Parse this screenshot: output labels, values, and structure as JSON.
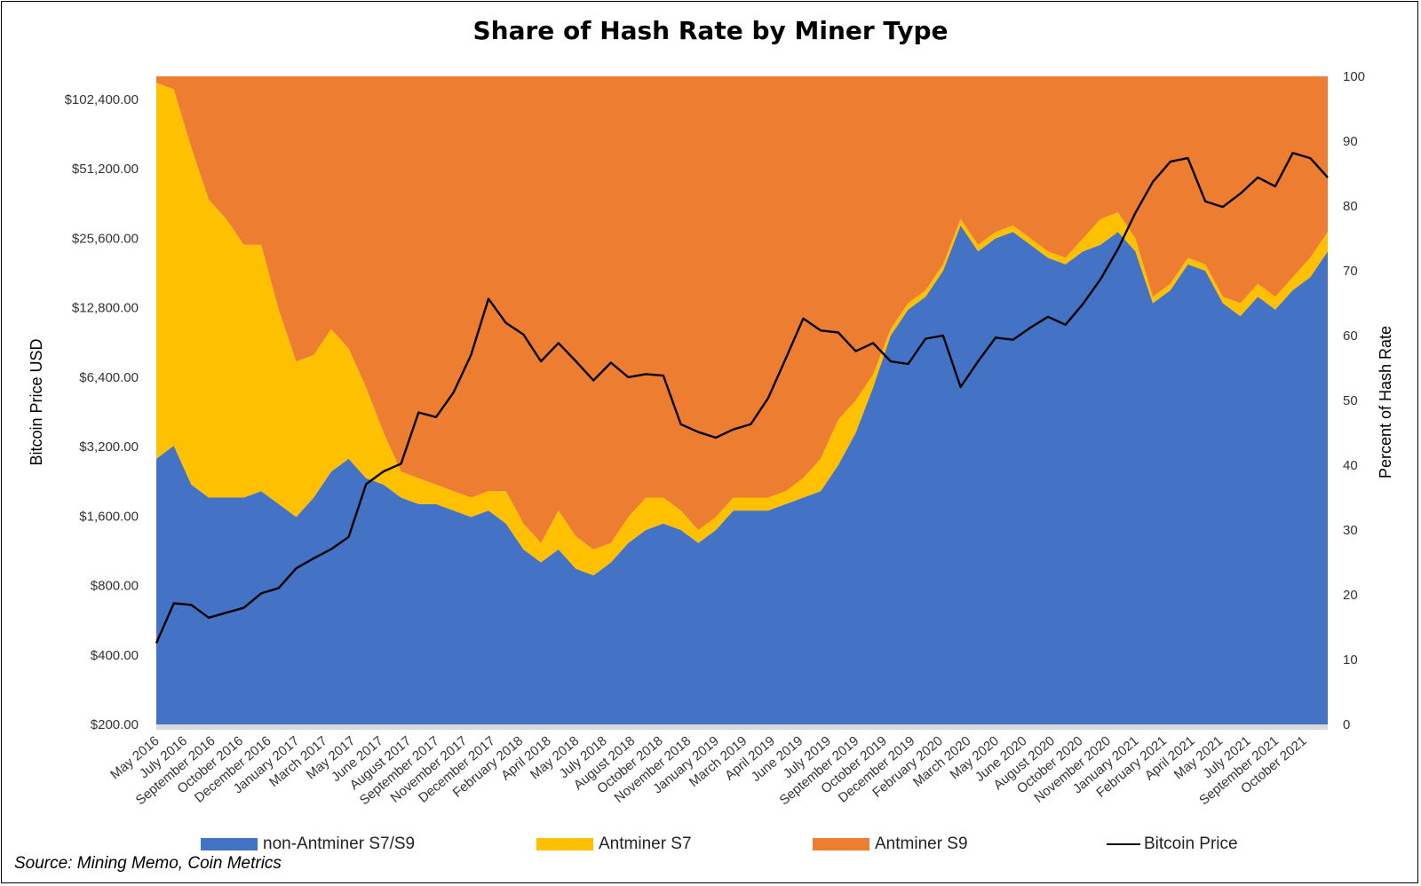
{
  "chart_data": {
    "type": "area",
    "title": "Share of Hash Rate by Miner Type",
    "left_axis": {
      "label": "Bitcoin Price USD",
      "scale": "log2",
      "ticks": [
        "$200.00",
        "$400.00",
        "$800.00",
        "$1,600.00",
        "$3,200.00",
        "$6,400.00",
        "$12,800.00",
        "$25,600.00",
        "$51,200.00",
        "$102,400.00"
      ],
      "tick_values": [
        200,
        400,
        800,
        1600,
        3200,
        6400,
        12800,
        25600,
        51200,
        102400
      ]
    },
    "right_axis": {
      "label": "Percent of Hash Rate",
      "range": [
        0,
        100
      ],
      "ticks": [
        "0",
        "10",
        "20",
        "30",
        "40",
        "50",
        "60",
        "70",
        "80",
        "90",
        "100"
      ]
    },
    "x_labels": [
      "May 2016",
      "July 2016",
      "September 2016",
      "October 2016",
      "December 2016",
      "January 2017",
      "March 2017",
      "May 2017",
      "June 2017",
      "August 2017",
      "September 2017",
      "November 2017",
      "December 2017",
      "February 2018",
      "April 2018",
      "May 2018",
      "July 2018",
      "August 2018",
      "October 2018",
      "November 2018",
      "January 2019",
      "March 2019",
      "April 2019",
      "June 2019",
      "July 2019",
      "September 2019",
      "October 2019",
      "December 2019",
      "February 2020",
      "March 2020",
      "May 2020",
      "June 2020",
      "August 2020",
      "October 2020",
      "November 2020",
      "January 2021",
      "February 2021",
      "April 2021",
      "May 2021",
      "July 2021",
      "September 2021",
      "October 2021"
    ],
    "x": [
      "2016-05",
      "2016-06",
      "2016-07",
      "2016-08",
      "2016-09",
      "2016-10",
      "2016-11",
      "2016-12",
      "2017-01",
      "2017-02",
      "2017-03",
      "2017-04",
      "2017-05",
      "2017-06",
      "2017-07",
      "2017-08",
      "2017-09",
      "2017-10",
      "2017-11",
      "2017-12",
      "2018-01",
      "2018-02",
      "2018-03",
      "2018-04",
      "2018-05",
      "2018-06",
      "2018-07",
      "2018-08",
      "2018-09",
      "2018-10",
      "2018-11",
      "2018-12",
      "2019-01",
      "2019-02",
      "2019-03",
      "2019-04",
      "2019-05",
      "2019-06",
      "2019-07",
      "2019-08",
      "2019-09",
      "2019-10",
      "2019-11",
      "2019-12",
      "2020-01",
      "2020-02",
      "2020-03",
      "2020-04",
      "2020-05",
      "2020-06",
      "2020-07",
      "2020-08",
      "2020-09",
      "2020-10",
      "2020-11",
      "2020-12",
      "2021-01",
      "2021-02",
      "2021-03",
      "2021-04",
      "2021-05",
      "2021-06",
      "2021-07",
      "2021-08",
      "2021-09",
      "2021-10",
      "2021-11",
      "2021-12"
    ],
    "series": [
      {
        "name": "non-Antminer S7/S9",
        "color": "#4472C4",
        "values": [
          41,
          43,
          37,
          35,
          35,
          35,
          36,
          34,
          32,
          35,
          39,
          41,
          38,
          37,
          35,
          34,
          34,
          33,
          32,
          33,
          31,
          27,
          25,
          27,
          24,
          23,
          25,
          28,
          30,
          31,
          30,
          28,
          30,
          33,
          33,
          33,
          34,
          35,
          36,
          40,
          45,
          52,
          60,
          64,
          66,
          70,
          77,
          73,
          75,
          76,
          74,
          72,
          71,
          73,
          74,
          76,
          73,
          65,
          67,
          71,
          70,
          65,
          63,
          66,
          64,
          67,
          69,
          73
        ]
      },
      {
        "name": "Antminer S7",
        "color": "#FFC000",
        "values": [
          58,
          55,
          52,
          46,
          43,
          39,
          38,
          30,
          24,
          22,
          22,
          17,
          14,
          8,
          4,
          4,
          3,
          3,
          3,
          3,
          5,
          4,
          3,
          6,
          5,
          4,
          3,
          4,
          5,
          4,
          3,
          2,
          2,
          2,
          2,
          2,
          2,
          3,
          5,
          7,
          5,
          2,
          1,
          1,
          1,
          1,
          1,
          1,
          1,
          1,
          1,
          1,
          1,
          2,
          4,
          3,
          2,
          1,
          1,
          1,
          1,
          1,
          2,
          2,
          2,
          2,
          3,
          3
        ]
      },
      {
        "name": "Antminer S9",
        "color": "#ED7D31",
        "values": [
          1,
          2,
          11,
          19,
          22,
          26,
          26,
          36,
          44,
          43,
          39,
          42,
          48,
          55,
          61,
          62,
          63,
          64,
          65,
          64,
          64,
          69,
          72,
          67,
          71,
          73,
          72,
          68,
          65,
          65,
          67,
          70,
          68,
          65,
          65,
          65,
          64,
          62,
          59,
          53,
          50,
          46,
          39,
          35,
          33,
          29,
          22,
          26,
          24,
          23,
          25,
          27,
          28,
          25,
          22,
          21,
          25,
          34,
          32,
          28,
          29,
          34,
          35,
          32,
          34,
          31,
          28,
          24
        ]
      },
      {
        "name": "Bitcoin Price",
        "color": "#000000",
        "axis": "left",
        "values": [
          450,
          670,
          660,
          580,
          610,
          640,
          740,
          780,
          950,
          1050,
          1150,
          1300,
          2200,
          2500,
          2700,
          4500,
          4300,
          5500,
          8000,
          14000,
          11000,
          9800,
          7500,
          9000,
          7500,
          6200,
          7400,
          6400,
          6600,
          6500,
          4000,
          3700,
          3500,
          3800,
          4000,
          5200,
          7700,
          11500,
          10200,
          10000,
          8300,
          9000,
          7500,
          7300,
          9400,
          9700,
          5800,
          7500,
          9500,
          9300,
          10500,
          11700,
          10800,
          13300,
          17000,
          23000,
          33000,
          45000,
          55000,
          57000,
          37000,
          35000,
          40000,
          47000,
          43000,
          60000,
          57000,
          47000
        ]
      }
    ],
    "legend": [
      "non-Antminer S7/S9",
      "Antminer S7",
      "Antminer S9",
      "Bitcoin Price"
    ],
    "legend_position": "bottom"
  },
  "source_note": "Source: Mining Memo, Coin Metrics"
}
